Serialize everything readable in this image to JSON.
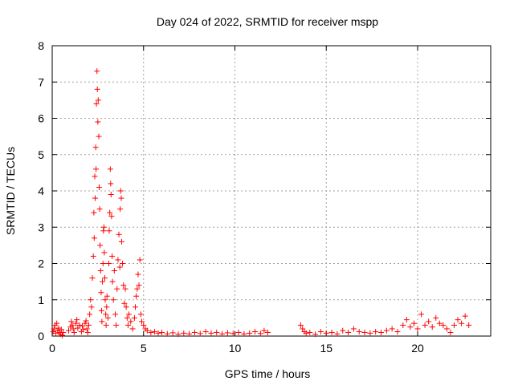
{
  "chart_data": {
    "type": "scatter",
    "title": "Day 024 of 2022, SRMTID for receiver mspp",
    "xlabel": "GPS time / hours",
    "ylabel": "SRMTID / TECUs",
    "xlim": [
      0,
      24
    ],
    "ylim": [
      0,
      8
    ],
    "xticks": [
      0,
      5,
      10,
      15,
      20
    ],
    "yticks": [
      0,
      1,
      2,
      3,
      4,
      5,
      6,
      7,
      8
    ],
    "grid": true,
    "marker": "+",
    "color": "#ff0000",
    "series": [
      {
        "name": "SRMTID",
        "points": [
          [
            0.05,
            0.12
          ],
          [
            0.1,
            0.2
          ],
          [
            0.15,
            0.3
          ],
          [
            0.2,
            0.08
          ],
          [
            0.25,
            0.35
          ],
          [
            0.3,
            0.15
          ],
          [
            0.35,
            0.22
          ],
          [
            0.4,
            0.1
          ],
          [
            0.45,
            0.05
          ],
          [
            0.5,
            0.18
          ],
          [
            0.55,
            0.02
          ],
          [
            0.6,
            0.1
          ],
          [
            0.9,
            0.15
          ],
          [
            1.0,
            0.25
          ],
          [
            1.05,
            0.4
          ],
          [
            1.1,
            0.3
          ],
          [
            1.15,
            0.2
          ],
          [
            1.2,
            0.1
          ],
          [
            1.3,
            0.35
          ],
          [
            1.35,
            0.45
          ],
          [
            1.4,
            0.22
          ],
          [
            1.5,
            0.3
          ],
          [
            1.6,
            0.12
          ],
          [
            1.65,
            0.28
          ],
          [
            1.7,
            0.18
          ],
          [
            1.8,
            0.35
          ],
          [
            1.85,
            0.42
          ],
          [
            1.9,
            0.2
          ],
          [
            1.95,
            0.1
          ],
          [
            2.0,
            0.3
          ],
          [
            2.05,
            0.6
          ],
          [
            2.1,
            1.0
          ],
          [
            2.15,
            0.8
          ],
          [
            2.2,
            1.6
          ],
          [
            2.25,
            2.2
          ],
          [
            2.28,
            3.4
          ],
          [
            2.3,
            2.7
          ],
          [
            2.33,
            4.4
          ],
          [
            2.35,
            3.8
          ],
          [
            2.38,
            5.2
          ],
          [
            2.4,
            4.6
          ],
          [
            2.42,
            6.4
          ],
          [
            2.45,
            7.3
          ],
          [
            2.47,
            6.8
          ],
          [
            2.5,
            5.9
          ],
          [
            2.52,
            6.5
          ],
          [
            2.55,
            5.5
          ],
          [
            2.57,
            4.1
          ],
          [
            2.6,
            3.5
          ],
          [
            2.62,
            2.5
          ],
          [
            2.65,
            1.8
          ],
          [
            2.68,
            1.2
          ],
          [
            2.7,
            0.7
          ],
          [
            2.72,
            0.4
          ],
          [
            2.75,
            1.5
          ],
          [
            2.78,
            2.0
          ],
          [
            2.8,
            2.9
          ],
          [
            2.83,
            3.0
          ],
          [
            2.85,
            2.3
          ],
          [
            2.88,
            1.6
          ],
          [
            2.9,
            1.0
          ],
          [
            2.93,
            0.6
          ],
          [
            2.95,
            0.3
          ],
          [
            2.98,
            0.8
          ],
          [
            3.0,
            1.1
          ],
          [
            3.05,
            0.5
          ],
          [
            3.1,
            2.0
          ],
          [
            3.12,
            2.9
          ],
          [
            3.15,
            3.4
          ],
          [
            3.18,
            4.6
          ],
          [
            3.2,
            4.2
          ],
          [
            3.22,
            3.9
          ],
          [
            3.25,
            3.3
          ],
          [
            3.28,
            2.2
          ],
          [
            3.3,
            1.5
          ],
          [
            3.35,
            1.0
          ],
          [
            3.4,
            1.8
          ],
          [
            3.45,
            0.6
          ],
          [
            3.5,
            0.3
          ],
          [
            3.55,
            1.3
          ],
          [
            3.6,
            2.1
          ],
          [
            3.65,
            2.8
          ],
          [
            3.7,
            1.9
          ],
          [
            3.72,
            3.5
          ],
          [
            3.75,
            4.0
          ],
          [
            3.78,
            3.8
          ],
          [
            3.8,
            2.6
          ],
          [
            3.85,
            2.0
          ],
          [
            3.9,
            1.4
          ],
          [
            3.95,
            0.9
          ],
          [
            4.0,
            1.3
          ],
          [
            4.05,
            0.8
          ],
          [
            4.1,
            0.5
          ],
          [
            4.15,
            0.3
          ],
          [
            4.2,
            0.6
          ],
          [
            4.3,
            0.4
          ],
          [
            4.4,
            0.2
          ],
          [
            4.5,
            0.5
          ],
          [
            4.55,
            0.8
          ],
          [
            4.6,
            1.1
          ],
          [
            4.65,
            1.3
          ],
          [
            4.7,
            1.7
          ],
          [
            4.75,
            1.4
          ],
          [
            4.8,
            2.1
          ],
          [
            4.85,
            0.6
          ],
          [
            4.9,
            0.4
          ],
          [
            5.0,
            0.3
          ],
          [
            5.1,
            0.2
          ],
          [
            5.2,
            0.15
          ],
          [
            5.4,
            0.1
          ],
          [
            5.6,
            0.12
          ],
          [
            5.8,
            0.08
          ],
          [
            6.0,
            0.1
          ],
          [
            6.3,
            0.06
          ],
          [
            6.6,
            0.09
          ],
          [
            6.9,
            0.05
          ],
          [
            7.2,
            0.08
          ],
          [
            7.5,
            0.06
          ],
          [
            7.8,
            0.1
          ],
          [
            8.1,
            0.07
          ],
          [
            8.4,
            0.12
          ],
          [
            8.7,
            0.08
          ],
          [
            9.0,
            0.1
          ],
          [
            9.3,
            0.06
          ],
          [
            9.6,
            0.09
          ],
          [
            9.9,
            0.07
          ],
          [
            10.2,
            0.1
          ],
          [
            10.5,
            0.06
          ],
          [
            10.8,
            0.08
          ],
          [
            11.1,
            0.12
          ],
          [
            11.4,
            0.07
          ],
          [
            11.6,
            0.15
          ],
          [
            11.8,
            0.1
          ],
          [
            13.6,
            0.3
          ],
          [
            13.7,
            0.2
          ],
          [
            13.8,
            0.12
          ],
          [
            13.9,
            0.08
          ],
          [
            14.1,
            0.1
          ],
          [
            14.4,
            0.05
          ],
          [
            14.7,
            0.12
          ],
          [
            15.0,
            0.08
          ],
          [
            15.3,
            0.1
          ],
          [
            15.6,
            0.06
          ],
          [
            15.9,
            0.15
          ],
          [
            16.2,
            0.1
          ],
          [
            16.5,
            0.2
          ],
          [
            16.8,
            0.12
          ],
          [
            17.1,
            0.1
          ],
          [
            17.4,
            0.08
          ],
          [
            17.7,
            0.12
          ],
          [
            18.0,
            0.1
          ],
          [
            18.3,
            0.15
          ],
          [
            18.6,
            0.2
          ],
          [
            18.9,
            0.12
          ],
          [
            19.2,
            0.3
          ],
          [
            19.4,
            0.45
          ],
          [
            19.6,
            0.25
          ],
          [
            19.8,
            0.35
          ],
          [
            20.0,
            0.2
          ],
          [
            20.2,
            0.6
          ],
          [
            20.4,
            0.3
          ],
          [
            20.6,
            0.4
          ],
          [
            20.8,
            0.25
          ],
          [
            21.0,
            0.5
          ],
          [
            21.2,
            0.35
          ],
          [
            21.4,
            0.3
          ],
          [
            21.6,
            0.2
          ],
          [
            21.8,
            0.1
          ],
          [
            22.0,
            0.3
          ],
          [
            22.2,
            0.45
          ],
          [
            22.4,
            0.35
          ],
          [
            22.6,
            0.55
          ],
          [
            22.8,
            0.3
          ]
        ]
      }
    ]
  }
}
